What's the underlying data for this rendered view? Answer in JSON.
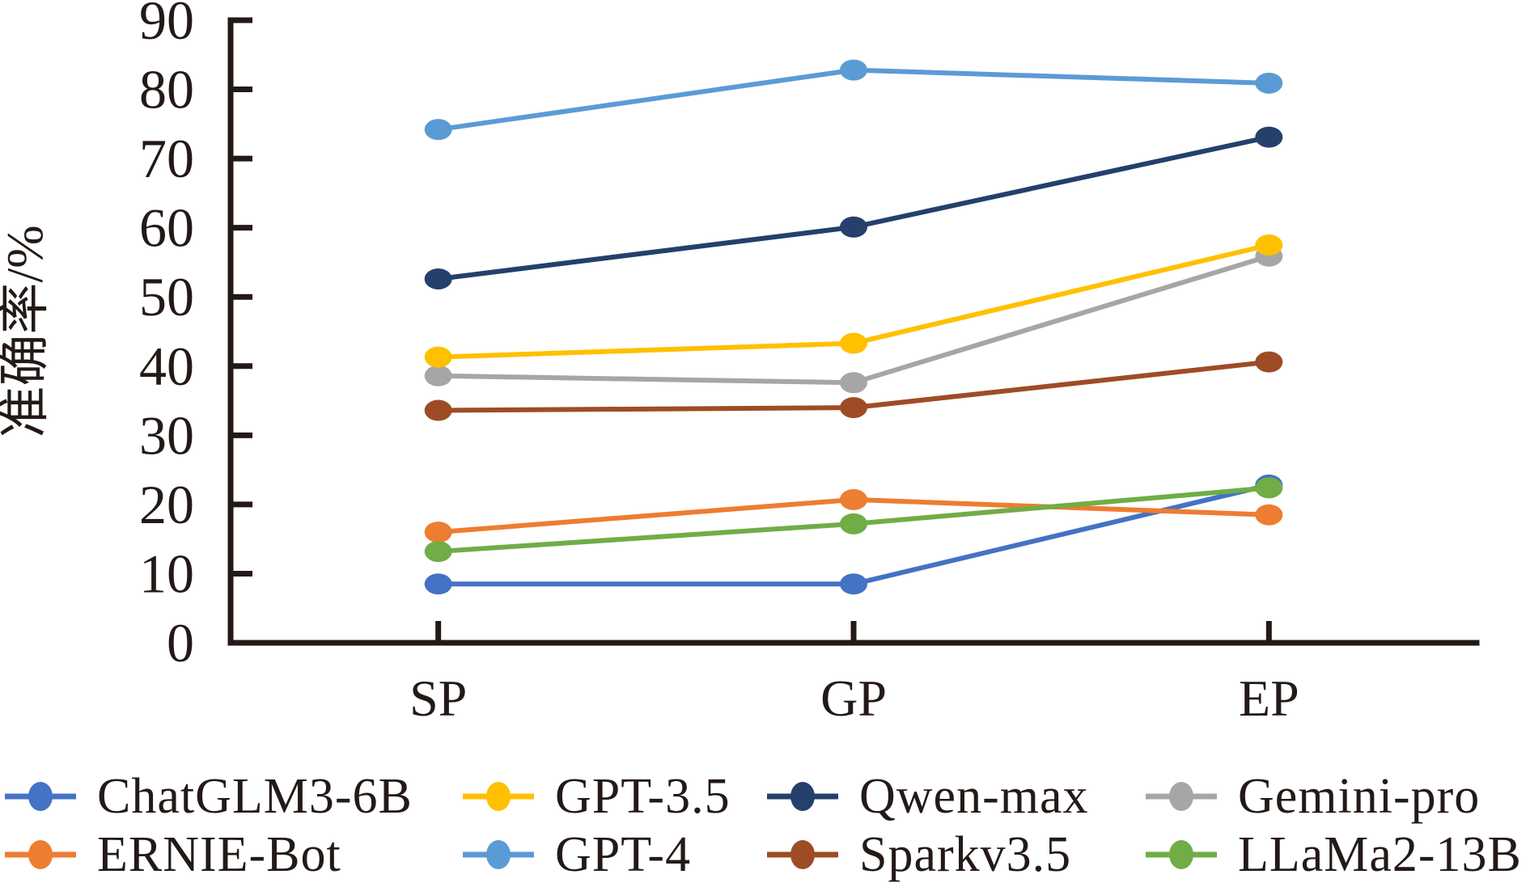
{
  "figure": {
    "background": "#ffffff",
    "axis_color": "#231916",
    "text_color": "#231916"
  },
  "chart_data": {
    "type": "line",
    "title": "",
    "xlabel": "",
    "ylabel": "准确率/%",
    "ylim": [
      0,
      90
    ],
    "ytick_step": 10,
    "yticks": [
      0,
      10,
      20,
      30,
      40,
      50,
      60,
      70,
      80,
      90
    ],
    "grid": false,
    "legend_position": "bottom",
    "categories": [
      "SP",
      "GP",
      "EP"
    ],
    "series": [
      {
        "name": "ChatGLM3-6B",
        "color": "#4472C4",
        "values": [
          8.5,
          8.5,
          22.8
        ]
      },
      {
        "name": "ERNIE-Bot",
        "color": "#ED7D31",
        "values": [
          16.0,
          20.7,
          18.5
        ]
      },
      {
        "name": "GPT-3.5",
        "color": "#FFC000",
        "values": [
          41.3,
          43.3,
          57.5
        ]
      },
      {
        "name": "GPT-4",
        "color": "#5B9BD5",
        "values": [
          74.2,
          82.8,
          80.9
        ]
      },
      {
        "name": "Qwen-max",
        "color": "#24406B",
        "values": [
          52.6,
          60.1,
          73.1
        ]
      },
      {
        "name": "Sparkv3.5",
        "color": "#9E4C26",
        "values": [
          33.6,
          34.0,
          40.6
        ]
      },
      {
        "name": "Gemini-pro",
        "color": "#A6A6A6",
        "values": [
          38.6,
          37.6,
          55.9
        ]
      },
      {
        "name": "LLaMa2-13B",
        "color": "#70AD47",
        "values": [
          13.2,
          17.2,
          22.4
        ]
      }
    ],
    "legend_order": [
      "ChatGLM3-6B",
      "GPT-3.5",
      "Qwen-max",
      "Gemini-pro",
      "ERNIE-Bot",
      "GPT-4",
      "Sparkv3.5",
      "LLaMa2-13B"
    ]
  }
}
